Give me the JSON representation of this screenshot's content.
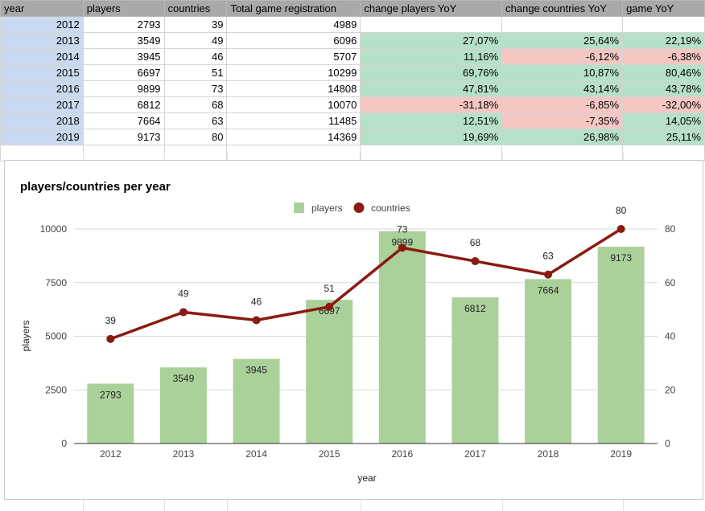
{
  "sheet": {
    "headers": [
      "year",
      "players",
      "countries",
      "Total game registration",
      "change players YoY",
      "change countries YoY",
      "game YoY"
    ],
    "rows": [
      {
        "year": "2012",
        "players": "2793",
        "countries": "39",
        "total": "4989",
        "ch_players": "",
        "ch_countries": "",
        "game": ""
      },
      {
        "year": "2013",
        "players": "3549",
        "countries": "49",
        "total": "6096",
        "ch_players": "27,07%",
        "ch_countries": "25,64%",
        "game": "22,19%"
      },
      {
        "year": "2014",
        "players": "3945",
        "countries": "46",
        "total": "5707",
        "ch_players": "11,16%",
        "ch_countries": "-6,12%",
        "game": "-6,38%"
      },
      {
        "year": "2015",
        "players": "6697",
        "countries": "51",
        "total": "10299",
        "ch_players": "69,76%",
        "ch_countries": "10,87%",
        "game": "80,46%"
      },
      {
        "year": "2016",
        "players": "9899",
        "countries": "73",
        "total": "14808",
        "ch_players": "47,81%",
        "ch_countries": "43,14%",
        "game": "43,78%"
      },
      {
        "year": "2017",
        "players": "6812",
        "countries": "68",
        "total": "10070",
        "ch_players": "-31,18%",
        "ch_countries": "-6,85%",
        "game": "-32,00%"
      },
      {
        "year": "2018",
        "players": "7664",
        "countries": "63",
        "total": "11485",
        "ch_players": "12,51%",
        "ch_countries": "-7,35%",
        "game": "14,05%"
      },
      {
        "year": "2019",
        "players": "9173",
        "countries": "80",
        "total": "14369",
        "ch_players": "19,69%",
        "ch_countries": "26,98%",
        "game": "25,11%"
      }
    ],
    "colors": {
      "header": "#a9a9a9",
      "year_fill": "#c9daf0",
      "positive": "#b6e0c7",
      "negative": "#f4c7c3"
    }
  },
  "chart_data": {
    "type": "bar",
    "title": "players/countries per year",
    "xlabel": "year",
    "ylabel": "players",
    "categories": [
      "2012",
      "2013",
      "2014",
      "2015",
      "2016",
      "2017",
      "2018",
      "2019"
    ],
    "series": [
      {
        "name": "players",
        "type": "bar",
        "axis": "left",
        "color": "#abd19a",
        "values": [
          2793,
          3549,
          3945,
          6697,
          9899,
          6812,
          7664,
          9173
        ]
      },
      {
        "name": "countries",
        "type": "line",
        "axis": "right",
        "color": "#8b1a10",
        "values": [
          39,
          49,
          46,
          51,
          73,
          68,
          63,
          80
        ]
      }
    ],
    "ylim": [
      0,
      10000
    ],
    "yticks": [
      "0",
      "2500",
      "5000",
      "7500",
      "10000"
    ],
    "y2lim": [
      0,
      80
    ],
    "y2ticks": [
      "0",
      "20",
      "40",
      "60",
      "80"
    ],
    "legend_position": "top",
    "grid": true
  }
}
